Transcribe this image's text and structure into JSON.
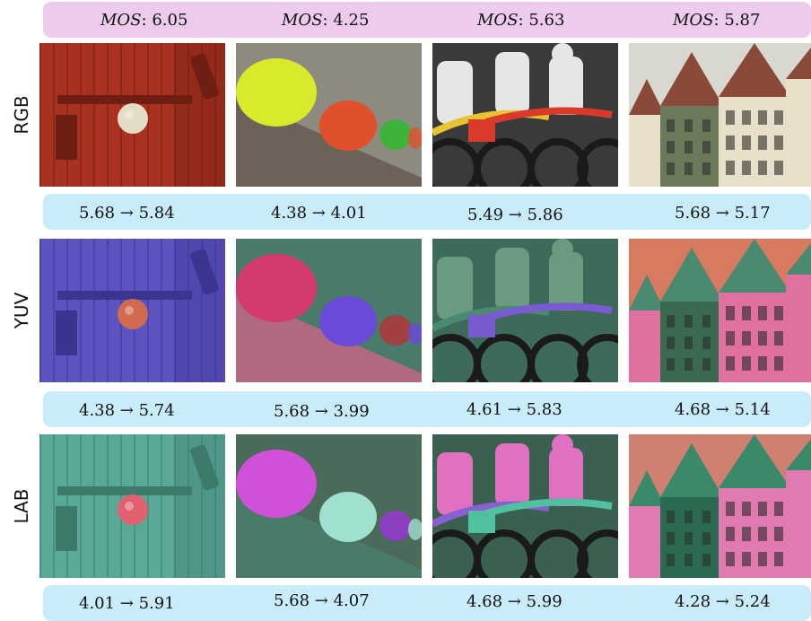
{
  "mos_header": [
    {
      "label": "MOS",
      "value": "6.05"
    },
    {
      "label": "MOS",
      "value": "4.25"
    },
    {
      "label": "MOS",
      "value": "5.63"
    },
    {
      "label": "MOS",
      "value": "5.87"
    }
  ],
  "rows": [
    {
      "label": "RGB",
      "scores": [
        "5.68 → 5.84",
        "4.38 → 4.01",
        "5.49 → 5.86",
        "5.68 → 5.17"
      ]
    },
    {
      "label": "YUV",
      "scores": [
        "4.38 → 5.74",
        "5.68 → 3.99",
        "4.61 → 5.83",
        "4.68 → 5.14"
      ]
    },
    {
      "label": "LAB",
      "scores": [
        "4.01 → 5.91",
        "5.68 → 4.07",
        "4.68 → 5.99",
        "4.28 → 5.24"
      ]
    }
  ],
  "palettes": {
    "RGB": {
      "door": "#a8321f",
      "doorDark": "#6e1e12",
      "knob": "#e4ddc6",
      "hatBg": "#8d8a80",
      "hat1": "#d8ea2a",
      "hat2": "#e0502a",
      "hat3": "#3eb23a",
      "hatWall": "#6c6258",
      "bikeBg": "#3a3a3a",
      "bike1": "#e6e6e6",
      "bike2": "#d93a2a",
      "bike3": "#e8c530",
      "houseSky": "#d8d8d0",
      "house1": "#8a4a3a",
      "house2": "#e8e0c8",
      "house3": "#6a7a5a"
    },
    "YUV": {
      "door": "#5c54c0",
      "doorDark": "#3c3590",
      "knob": "#d06a50",
      "hatBg": "#4a7a6a",
      "hat1": "#d23a70",
      "hat2": "#6a4ad8",
      "hat3": "#a04040",
      "hatWall": "#b06a80",
      "bikeBg": "#3e6a5a",
      "bike1": "#6a9a80",
      "bike2": "#7a5ad0",
      "bike3": "#4a8a70",
      "houseSky": "#d87a60",
      "house1": "#4a8a70",
      "house2": "#e070a0",
      "house3": "#3a6a50"
    },
    "LAB": {
      "door": "#5aa898",
      "doorDark": "#3d7a6c",
      "knob": "#e06070",
      "hatBg": "#4a6a5a",
      "hat1": "#d050d8",
      "hat2": "#a0e0d0",
      "hat3": "#8a40c0",
      "hatWall": "#4a7a68",
      "bikeBg": "#3a6050",
      "bike1": "#e070c0",
      "bike2": "#50c0a0",
      "bike3": "#8a60d0",
      "houseSky": "#d08070",
      "house1": "#3a8a6a",
      "house2": "#e07ab0",
      "house3": "#2a6a50"
    }
  }
}
